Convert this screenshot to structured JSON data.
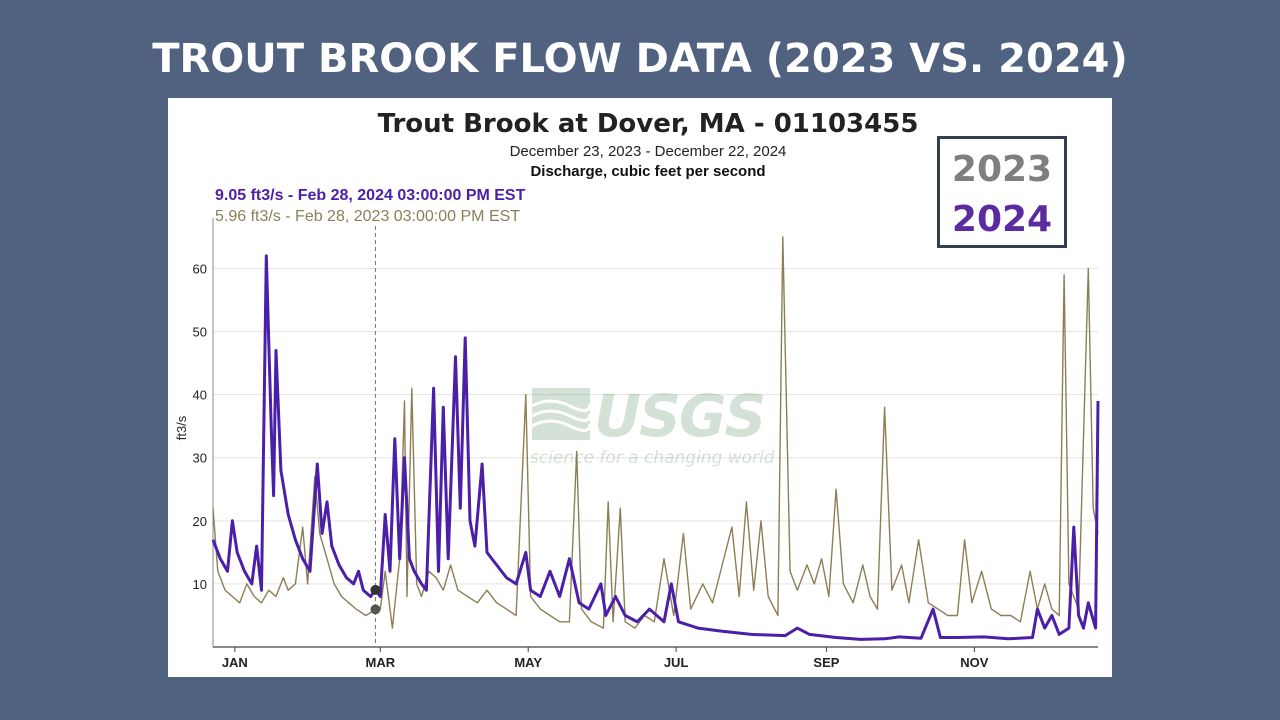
{
  "slide": {
    "title": "TROUT BROOK FLOW DATA (2023 VS. 2024)"
  },
  "legend": {
    "label_2023": "2023",
    "label_2024": "2024"
  },
  "logo": {
    "name": "USGS",
    "tagline": "science for a changing world"
  },
  "colors": {
    "background": "#50627f",
    "series_2023": "#8c7f56",
    "series_2024": "#4b1fa8",
    "legend_2023": "#7f7f7f",
    "legend_2024": "#5b2ca0"
  },
  "chart_data": {
    "type": "line",
    "title": "Trout Brook at Dover, MA - 01103455",
    "subtitle": "December 23, 2023 - December 22, 2024",
    "parameter": "Discharge, cubic feet per second",
    "ylabel": "ft3/s",
    "xlabel": "",
    "ylim": [
      0,
      68
    ],
    "yticks": [
      10,
      20,
      30,
      40,
      50,
      60
    ],
    "xlim": [
      "2023-12-23",
      "2024-12-22"
    ],
    "xticks": [
      {
        "label": "JAN",
        "date": "2024-01-01"
      },
      {
        "label": "MAR",
        "date": "2024-03-01"
      },
      {
        "label": "MAY",
        "date": "2024-05-01"
      },
      {
        "label": "JUL",
        "date": "2024-07-01"
      },
      {
        "label": "SEP",
        "date": "2024-09-01"
      },
      {
        "label": "NOV",
        "date": "2024-11-01"
      }
    ],
    "grid": true,
    "cursor": {
      "date": "2024-02-28",
      "readout_2024": "9.05 ft3/s - Feb 28, 2024 03:00:00 PM EST",
      "readout_2023": "5.96 ft3/s - Feb 28, 2023 03:00:00 PM EST",
      "value_2024": 9.05,
      "value_2023": 5.96
    },
    "series": [
      {
        "name": "2024",
        "color": "#4b1fa8",
        "points": [
          [
            "2023-12-23",
            17
          ],
          [
            "2023-12-26",
            14
          ],
          [
            "2023-12-29",
            12
          ],
          [
            "2023-12-31",
            20
          ],
          [
            "2024-01-02",
            15
          ],
          [
            "2024-01-05",
            12
          ],
          [
            "2024-01-08",
            10
          ],
          [
            "2024-01-10",
            16
          ],
          [
            "2024-01-12",
            9
          ],
          [
            "2024-01-14",
            62
          ],
          [
            "2024-01-16",
            35
          ],
          [
            "2024-01-17",
            24
          ],
          [
            "2024-01-18",
            47
          ],
          [
            "2024-01-20",
            28
          ],
          [
            "2024-01-23",
            21
          ],
          [
            "2024-01-26",
            17
          ],
          [
            "2024-01-29",
            14
          ],
          [
            "2024-02-01",
            12
          ],
          [
            "2024-02-04",
            29
          ],
          [
            "2024-02-06",
            18
          ],
          [
            "2024-02-08",
            23
          ],
          [
            "2024-02-10",
            16
          ],
          [
            "2024-02-13",
            13
          ],
          [
            "2024-02-16",
            11
          ],
          [
            "2024-02-19",
            10
          ],
          [
            "2024-02-21",
            12
          ],
          [
            "2024-02-23",
            9
          ],
          [
            "2024-02-26",
            8
          ],
          [
            "2024-02-28",
            9.05
          ],
          [
            "2024-03-01",
            8
          ],
          [
            "2024-03-03",
            21
          ],
          [
            "2024-03-05",
            12
          ],
          [
            "2024-03-07",
            33
          ],
          [
            "2024-03-09",
            14
          ],
          [
            "2024-03-11",
            30
          ],
          [
            "2024-03-13",
            14
          ],
          [
            "2024-03-15",
            12
          ],
          [
            "2024-03-18",
            10
          ],
          [
            "2024-03-20",
            9
          ],
          [
            "2024-03-23",
            41
          ],
          [
            "2024-03-25",
            12
          ],
          [
            "2024-03-27",
            38
          ],
          [
            "2024-03-29",
            14
          ],
          [
            "2024-04-01",
            46
          ],
          [
            "2024-04-03",
            22
          ],
          [
            "2024-04-05",
            49
          ],
          [
            "2024-04-07",
            20
          ],
          [
            "2024-04-09",
            16
          ],
          [
            "2024-04-12",
            29
          ],
          [
            "2024-04-14",
            15
          ],
          [
            "2024-04-18",
            13
          ],
          [
            "2024-04-22",
            11
          ],
          [
            "2024-04-26",
            10
          ],
          [
            "2024-04-30",
            15
          ],
          [
            "2024-05-02",
            9
          ],
          [
            "2024-05-06",
            8
          ],
          [
            "2024-05-10",
            12
          ],
          [
            "2024-05-14",
            8
          ],
          [
            "2024-05-18",
            14
          ],
          [
            "2024-05-22",
            7
          ],
          [
            "2024-05-26",
            6
          ],
          [
            "2024-05-31",
            10
          ],
          [
            "2024-06-02",
            5
          ],
          [
            "2024-06-06",
            8
          ],
          [
            "2024-06-10",
            5
          ],
          [
            "2024-06-15",
            4
          ],
          [
            "2024-06-20",
            6
          ],
          [
            "2024-06-26",
            4
          ],
          [
            "2024-06-29",
            10
          ],
          [
            "2024-07-02",
            4
          ],
          [
            "2024-07-10",
            3
          ],
          [
            "2024-07-20",
            2.5
          ],
          [
            "2024-08-01",
            2
          ],
          [
            "2024-08-15",
            1.8
          ],
          [
            "2024-08-20",
            3
          ],
          [
            "2024-08-25",
            2
          ],
          [
            "2024-09-05",
            1.5
          ],
          [
            "2024-09-15",
            1.2
          ],
          [
            "2024-09-25",
            1.3
          ],
          [
            "2024-10-01",
            1.6
          ],
          [
            "2024-10-10",
            1.4
          ],
          [
            "2024-10-15",
            6
          ],
          [
            "2024-10-18",
            1.5
          ],
          [
            "2024-10-25",
            1.5
          ],
          [
            "2024-11-05",
            1.6
          ],
          [
            "2024-11-15",
            1.3
          ],
          [
            "2024-11-25",
            1.5
          ],
          [
            "2024-11-27",
            6
          ],
          [
            "2024-11-30",
            3
          ],
          [
            "2024-12-03",
            5
          ],
          [
            "2024-12-06",
            2
          ],
          [
            "2024-12-10",
            3
          ],
          [
            "2024-12-12",
            19
          ],
          [
            "2024-12-14",
            5
          ],
          [
            "2024-12-16",
            3
          ],
          [
            "2024-12-18",
            7
          ],
          [
            "2024-12-21",
            3
          ],
          [
            "2024-12-22",
            39
          ]
        ]
      },
      {
        "name": "2023",
        "color": "#8c7f56",
        "points": [
          [
            "2023-12-23",
            22
          ],
          [
            "2023-12-25",
            12
          ],
          [
            "2023-12-28",
            9
          ],
          [
            "2023-12-31",
            8
          ],
          [
            "2024-01-03",
            7
          ],
          [
            "2024-01-06",
            10
          ],
          [
            "2024-01-09",
            8
          ],
          [
            "2024-01-12",
            7
          ],
          [
            "2024-01-15",
            9
          ],
          [
            "2024-01-18",
            8
          ],
          [
            "2024-01-21",
            11
          ],
          [
            "2024-01-23",
            9
          ],
          [
            "2024-01-26",
            10
          ],
          [
            "2024-01-29",
            19
          ],
          [
            "2024-01-31",
            10
          ],
          [
            "2024-02-03",
            27
          ],
          [
            "2024-02-05",
            18
          ],
          [
            "2024-02-08",
            14
          ],
          [
            "2024-02-11",
            10
          ],
          [
            "2024-02-14",
            8
          ],
          [
            "2024-02-17",
            7
          ],
          [
            "2024-02-20",
            6
          ],
          [
            "2024-02-24",
            5
          ],
          [
            "2024-02-28",
            5.96
          ],
          [
            "2024-03-01",
            6
          ],
          [
            "2024-03-03",
            12
          ],
          [
            "2024-03-06",
            3
          ],
          [
            "2024-03-09",
            14
          ],
          [
            "2024-03-11",
            39
          ],
          [
            "2024-03-12",
            8
          ],
          [
            "2024-03-14",
            41
          ],
          [
            "2024-03-16",
            10
          ],
          [
            "2024-03-18",
            8
          ],
          [
            "2024-03-21",
            12
          ],
          [
            "2024-03-24",
            11
          ],
          [
            "2024-03-27",
            9
          ],
          [
            "2024-03-30",
            13
          ],
          [
            "2024-04-02",
            9
          ],
          [
            "2024-04-06",
            8
          ],
          [
            "2024-04-10",
            7
          ],
          [
            "2024-04-14",
            9
          ],
          [
            "2024-04-18",
            7
          ],
          [
            "2024-04-22",
            6
          ],
          [
            "2024-04-26",
            5
          ],
          [
            "2024-04-30",
            40
          ],
          [
            "2024-05-02",
            8
          ],
          [
            "2024-05-06",
            6
          ],
          [
            "2024-05-10",
            5
          ],
          [
            "2024-05-14",
            4
          ],
          [
            "2024-05-18",
            4
          ],
          [
            "2024-05-21",
            31
          ],
          [
            "2024-05-23",
            6
          ],
          [
            "2024-05-27",
            4
          ],
          [
            "2024-06-01",
            3
          ],
          [
            "2024-06-03",
            23
          ],
          [
            "2024-06-05",
            4
          ],
          [
            "2024-06-08",
            22
          ],
          [
            "2024-06-10",
            4
          ],
          [
            "2024-06-14",
            3
          ],
          [
            "2024-06-18",
            5
          ],
          [
            "2024-06-22",
            4
          ],
          [
            "2024-06-26",
            14
          ],
          [
            "2024-06-30",
            5
          ],
          [
            "2024-07-04",
            18
          ],
          [
            "2024-07-07",
            6
          ],
          [
            "2024-07-12",
            10
          ],
          [
            "2024-07-16",
            7
          ],
          [
            "2024-07-20",
            13
          ],
          [
            "2024-07-24",
            19
          ],
          [
            "2024-07-27",
            8
          ],
          [
            "2024-07-30",
            23
          ],
          [
            "2024-08-02",
            9
          ],
          [
            "2024-08-05",
            20
          ],
          [
            "2024-08-08",
            8
          ],
          [
            "2024-08-12",
            5
          ],
          [
            "2024-08-14",
            65
          ],
          [
            "2024-08-17",
            12
          ],
          [
            "2024-08-20",
            9
          ],
          [
            "2024-08-24",
            13
          ],
          [
            "2024-08-27",
            10
          ],
          [
            "2024-08-30",
            14
          ],
          [
            "2024-09-02",
            8
          ],
          [
            "2024-09-05",
            25
          ],
          [
            "2024-09-08",
            10
          ],
          [
            "2024-09-12",
            7
          ],
          [
            "2024-09-16",
            13
          ],
          [
            "2024-09-19",
            8
          ],
          [
            "2024-09-22",
            6
          ],
          [
            "2024-09-25",
            38
          ],
          [
            "2024-09-28",
            9
          ],
          [
            "2024-10-02",
            13
          ],
          [
            "2024-10-05",
            7
          ],
          [
            "2024-10-09",
            17
          ],
          [
            "2024-10-13",
            7
          ],
          [
            "2024-10-17",
            6
          ],
          [
            "2024-10-21",
            5
          ],
          [
            "2024-10-25",
            5
          ],
          [
            "2024-10-28",
            17
          ],
          [
            "2024-10-31",
            7
          ],
          [
            "2024-11-04",
            12
          ],
          [
            "2024-11-08",
            6
          ],
          [
            "2024-11-12",
            5
          ],
          [
            "2024-11-16",
            5
          ],
          [
            "2024-11-20",
            4
          ],
          [
            "2024-11-24",
            12
          ],
          [
            "2024-11-27",
            6
          ],
          [
            "2024-11-30",
            10
          ],
          [
            "2024-12-03",
            6
          ],
          [
            "2024-12-06",
            5
          ],
          [
            "2024-12-08",
            59
          ],
          [
            "2024-12-10",
            10
          ],
          [
            "2024-12-14",
            6
          ],
          [
            "2024-12-18",
            60
          ],
          [
            "2024-12-20",
            22
          ],
          [
            "2024-12-22",
            18
          ]
        ]
      }
    ]
  }
}
